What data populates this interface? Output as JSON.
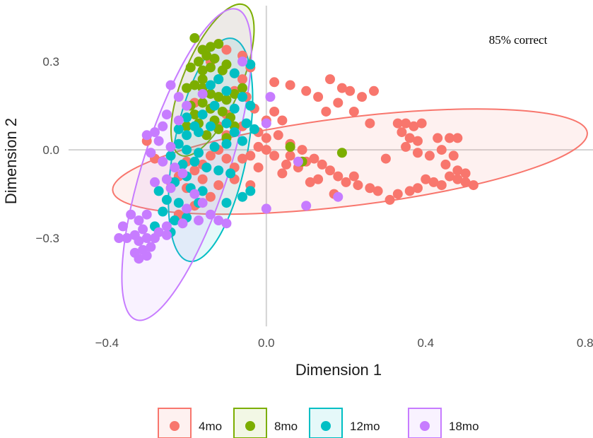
{
  "chart_data": {
    "type": "scatter",
    "xlabel": "Dimension 1",
    "ylabel": "Dimension 2",
    "xlim": [
      -0.5,
      0.82
    ],
    "ylim": [
      -0.6,
      0.49
    ],
    "x_ticks": [
      -0.4,
      0.0,
      0.4,
      0.8
    ],
    "x_tick_labels": [
      "−0.4",
      "0.0",
      "0.4",
      "0.8"
    ],
    "y_ticks": [
      -0.3,
      0.0,
      0.3
    ],
    "y_tick_labels": [
      "−0.3",
      "0.0",
      "0.3"
    ],
    "grid": "zero-lines",
    "legend_position": "bottom",
    "annotation": "85% correct",
    "series": [
      {
        "name": "4mo",
        "color": "#F8766D",
        "ellipse": {
          "cx": 0.21,
          "cy": -0.04,
          "rx": 0.6,
          "ry": 0.15,
          "angle_deg": -7
        },
        "points": [
          [
            0.02,
            0.23
          ],
          [
            0.06,
            0.22
          ],
          [
            0.1,
            0.2
          ],
          [
            0.13,
            0.18
          ],
          [
            0.16,
            0.24
          ],
          [
            0.19,
            0.21
          ],
          [
            0.21,
            0.2
          ],
          [
            0.24,
            0.18
          ],
          [
            0.27,
            0.2
          ],
          [
            0.18,
            0.16
          ],
          [
            0.15,
            0.13
          ],
          [
            0.22,
            0.13
          ],
          [
            0.26,
            0.09
          ],
          [
            0.33,
            0.09
          ],
          [
            0.35,
            0.09
          ],
          [
            0.37,
            0.08
          ],
          [
            0.39,
            0.09
          ],
          [
            0.34,
            0.06
          ],
          [
            0.36,
            0.04
          ],
          [
            0.38,
            0.03
          ],
          [
            0.35,
            0.01
          ],
          [
            0.38,
            -0.01
          ],
          [
            0.41,
            -0.02
          ],
          [
            0.43,
            0.04
          ],
          [
            0.46,
            0.04
          ],
          [
            0.48,
            0.04
          ],
          [
            0.44,
            0.0
          ],
          [
            0.47,
            -0.02
          ],
          [
            0.45,
            -0.05
          ],
          [
            0.48,
            -0.07
          ],
          [
            0.5,
            -0.08
          ],
          [
            0.46,
            -0.09
          ],
          [
            0.48,
            -0.1
          ],
          [
            0.5,
            -0.11
          ],
          [
            0.52,
            -0.12
          ],
          [
            0.44,
            -0.12
          ],
          [
            0.42,
            -0.11
          ],
          [
            0.4,
            -0.1
          ],
          [
            0.38,
            -0.13
          ],
          [
            0.36,
            -0.14
          ],
          [
            0.33,
            -0.15
          ],
          [
            0.31,
            -0.17
          ],
          [
            0.28,
            -0.14
          ],
          [
            0.26,
            -0.13
          ],
          [
            0.23,
            -0.12
          ],
          [
            0.2,
            -0.11
          ],
          [
            0.18,
            -0.09
          ],
          [
            0.16,
            -0.07
          ],
          [
            0.14,
            -0.05
          ],
          [
            0.12,
            -0.03
          ],
          [
            0.1,
            -0.04
          ],
          [
            0.08,
            -0.06
          ],
          [
            0.06,
            -0.02
          ],
          [
            0.05,
            -0.05
          ],
          [
            0.04,
            -0.08
          ],
          [
            0.02,
            -0.02
          ],
          [
            0.0,
            0.0
          ],
          [
            0.0,
            0.04
          ],
          [
            0.03,
            0.05
          ],
          [
            0.06,
            0.02
          ],
          [
            0.09,
            0.0
          ],
          [
            0.11,
            -0.11
          ],
          [
            0.13,
            -0.1
          ],
          [
            0.04,
            0.1
          ],
          [
            0.02,
            0.13
          ],
          [
            0.0,
            0.1
          ],
          [
            -0.02,
            0.01
          ],
          [
            -0.04,
            -0.02
          ],
          [
            -0.06,
            -0.03
          ],
          [
            -0.08,
            -0.06
          ],
          [
            -0.1,
            -0.03
          ],
          [
            -0.12,
            0.0
          ],
          [
            -0.14,
            -0.02
          ],
          [
            -0.16,
            -0.05
          ],
          [
            -0.18,
            -0.07
          ],
          [
            -0.2,
            -0.04
          ],
          [
            -0.22,
            -0.09
          ],
          [
            -0.24,
            -0.11
          ],
          [
            -0.2,
            -0.13
          ],
          [
            -0.16,
            -0.1
          ],
          [
            -0.12,
            -0.12
          ],
          [
            -0.08,
            -0.1
          ],
          [
            -0.04,
            -0.12
          ],
          [
            -0.02,
            -0.06
          ],
          [
            -0.02,
            0.06
          ],
          [
            -0.06,
            0.08
          ],
          [
            -0.1,
            0.12
          ],
          [
            -0.14,
            0.14
          ],
          [
            -0.18,
            0.16
          ],
          [
            -0.08,
            0.2
          ],
          [
            -0.06,
            0.24
          ],
          [
            -0.04,
            0.28
          ],
          [
            -0.06,
            0.32
          ],
          [
            -0.1,
            0.34
          ],
          [
            -0.14,
            0.3
          ],
          [
            -0.16,
            0.34
          ],
          [
            -0.12,
            0.36
          ],
          [
            -0.08,
            0.26
          ],
          [
            -0.05,
            0.18
          ],
          [
            -0.28,
            -0.03
          ],
          [
            -0.3,
            0.03
          ],
          [
            -0.14,
            -0.16
          ],
          [
            -0.18,
            -0.19
          ],
          [
            -0.22,
            -0.22
          ],
          [
            -0.1,
            0.05
          ],
          [
            -0.12,
            0.08
          ],
          [
            0.3,
            -0.03
          ],
          [
            0.22,
            -0.09
          ],
          [
            0.17,
            -0.15
          ],
          [
            -0.03,
            0.14
          ]
        ]
      },
      {
        "name": "8mo",
        "color": "#7CAE00",
        "ellipse": {
          "cx": -0.135,
          "cy": 0.237,
          "rx": 0.205,
          "ry": 0.098,
          "angle_deg": -67
        },
        "points": [
          [
            -0.18,
            0.38
          ],
          [
            -0.16,
            0.34
          ],
          [
            -0.14,
            0.35
          ],
          [
            -0.12,
            0.36
          ],
          [
            -0.15,
            0.32
          ],
          [
            -0.13,
            0.31
          ],
          [
            -0.17,
            0.3
          ],
          [
            -0.19,
            0.28
          ],
          [
            -0.16,
            0.27
          ],
          [
            -0.14,
            0.28
          ],
          [
            -0.11,
            0.27
          ],
          [
            -0.1,
            0.29
          ],
          [
            -0.12,
            0.24
          ],
          [
            -0.16,
            0.24
          ],
          [
            -0.18,
            0.22
          ],
          [
            -0.2,
            0.21
          ],
          [
            -0.16,
            0.21
          ],
          [
            -0.14,
            0.19
          ],
          [
            -0.12,
            0.18
          ],
          [
            -0.1,
            0.17
          ],
          [
            -0.08,
            0.19
          ],
          [
            -0.06,
            0.21
          ],
          [
            -0.16,
            0.16
          ],
          [
            -0.19,
            0.15
          ],
          [
            -0.14,
            0.14
          ],
          [
            -0.11,
            0.13
          ],
          [
            -0.09,
            0.11
          ],
          [
            -0.13,
            0.1
          ],
          [
            -0.17,
            0.09
          ],
          [
            -0.2,
            0.08
          ],
          [
            -0.12,
            0.07
          ],
          [
            -0.08,
            0.08
          ],
          [
            -0.1,
            0.04
          ],
          [
            0.06,
            0.01
          ],
          [
            0.09,
            -0.04
          ],
          [
            0.19,
            -0.01
          ],
          [
            -0.15,
            0.05
          ],
          [
            -0.18,
            0.12
          ]
        ]
      },
      {
        "name": "12mo",
        "color": "#00BFC4",
        "ellipse": {
          "cx": -0.14,
          "cy": 0.0,
          "rx": 0.285,
          "ry": 0.125,
          "angle_deg": -79
        },
        "points": [
          [
            -0.04,
            0.29
          ],
          [
            -0.08,
            0.26
          ],
          [
            -0.12,
            0.24
          ],
          [
            -0.14,
            0.22
          ],
          [
            -0.1,
            0.2
          ],
          [
            -0.06,
            0.18
          ],
          [
            -0.04,
            0.15
          ],
          [
            -0.08,
            0.14
          ],
          [
            -0.13,
            0.15
          ],
          [
            -0.16,
            0.12
          ],
          [
            -0.2,
            0.11
          ],
          [
            -0.18,
            0.08
          ],
          [
            -0.22,
            0.07
          ],
          [
            -0.2,
            0.05
          ],
          [
            -0.17,
            0.06
          ],
          [
            -0.14,
            0.08
          ],
          [
            -0.1,
            0.09
          ],
          [
            -0.08,
            0.06
          ],
          [
            -0.05,
            0.09
          ],
          [
            -0.03,
            0.07
          ],
          [
            -0.22,
            0.02
          ],
          [
            -0.2,
            0.0
          ],
          [
            -0.17,
            -0.01
          ],
          [
            -0.13,
            0.01
          ],
          [
            -0.1,
            0.02
          ],
          [
            -0.06,
            0.03
          ],
          [
            -0.24,
            -0.02
          ],
          [
            -0.21,
            -0.05
          ],
          [
            -0.18,
            -0.04
          ],
          [
            -0.15,
            -0.06
          ],
          [
            -0.12,
            -0.07
          ],
          [
            -0.09,
            -0.08
          ],
          [
            -0.2,
            -0.09
          ],
          [
            -0.23,
            -0.11
          ],
          [
            -0.19,
            -0.13
          ],
          [
            -0.16,
            -0.14
          ],
          [
            -0.27,
            -0.14
          ],
          [
            -0.25,
            -0.17
          ],
          [
            -0.22,
            -0.18
          ],
          [
            -0.26,
            -0.21
          ],
          [
            -0.23,
            -0.24
          ],
          [
            -0.28,
            -0.26
          ],
          [
            -0.2,
            -0.23
          ],
          [
            -0.17,
            -0.18
          ],
          [
            -0.04,
            -0.14
          ],
          [
            -0.06,
            -0.16
          ],
          [
            -0.1,
            -0.18
          ],
          [
            -0.24,
            -0.28
          ]
        ]
      },
      {
        "name": "18mo",
        "color": "#C77CFF",
        "ellipse": {
          "cx": -0.2,
          "cy": -0.05,
          "rx": 0.41,
          "ry": 0.145,
          "angle_deg": -72
        },
        "points": [
          [
            -0.24,
            0.22
          ],
          [
            -0.22,
            0.18
          ],
          [
            -0.2,
            0.15
          ],
          [
            -0.25,
            0.12
          ],
          [
            -0.22,
            0.1
          ],
          [
            -0.26,
            0.08
          ],
          [
            -0.28,
            0.06
          ],
          [
            -0.3,
            0.05
          ],
          [
            -0.27,
            0.03
          ],
          [
            -0.24,
            0.01
          ],
          [
            -0.29,
            -0.01
          ],
          [
            -0.26,
            -0.04
          ],
          [
            -0.23,
            -0.06
          ],
          [
            -0.21,
            -0.08
          ],
          [
            -0.25,
            -0.1
          ],
          [
            -0.28,
            -0.11
          ],
          [
            -0.24,
            -0.13
          ],
          [
            -0.18,
            -0.15
          ],
          [
            -0.16,
            -0.18
          ],
          [
            -0.2,
            -0.2
          ],
          [
            -0.14,
            -0.22
          ],
          [
            -0.12,
            -0.24
          ],
          [
            -0.17,
            -0.24
          ],
          [
            -0.21,
            -0.25
          ],
          [
            -0.25,
            -0.26
          ],
          [
            -0.3,
            -0.22
          ],
          [
            -0.32,
            -0.24
          ],
          [
            -0.34,
            -0.22
          ],
          [
            -0.31,
            -0.27
          ],
          [
            -0.33,
            -0.29
          ],
          [
            -0.35,
            -0.3
          ],
          [
            -0.32,
            -0.31
          ],
          [
            -0.3,
            -0.3
          ],
          [
            -0.28,
            -0.3
          ],
          [
            -0.27,
            -0.28
          ],
          [
            -0.25,
            -0.29
          ],
          [
            -0.29,
            -0.33
          ],
          [
            -0.31,
            -0.34
          ],
          [
            -0.33,
            -0.35
          ],
          [
            -0.3,
            -0.36
          ],
          [
            -0.32,
            -0.37
          ],
          [
            -0.37,
            -0.3
          ],
          [
            -0.36,
            -0.26
          ],
          [
            -0.06,
            0.3
          ],
          [
            0.0,
            0.09
          ],
          [
            0.01,
            0.18
          ],
          [
            0.1,
            -0.19
          ],
          [
            0.0,
            -0.2
          ],
          [
            0.18,
            -0.16
          ],
          [
            -0.16,
            0.19
          ],
          [
            -0.1,
            -0.25
          ],
          [
            0.08,
            -0.04
          ]
        ]
      }
    ]
  }
}
